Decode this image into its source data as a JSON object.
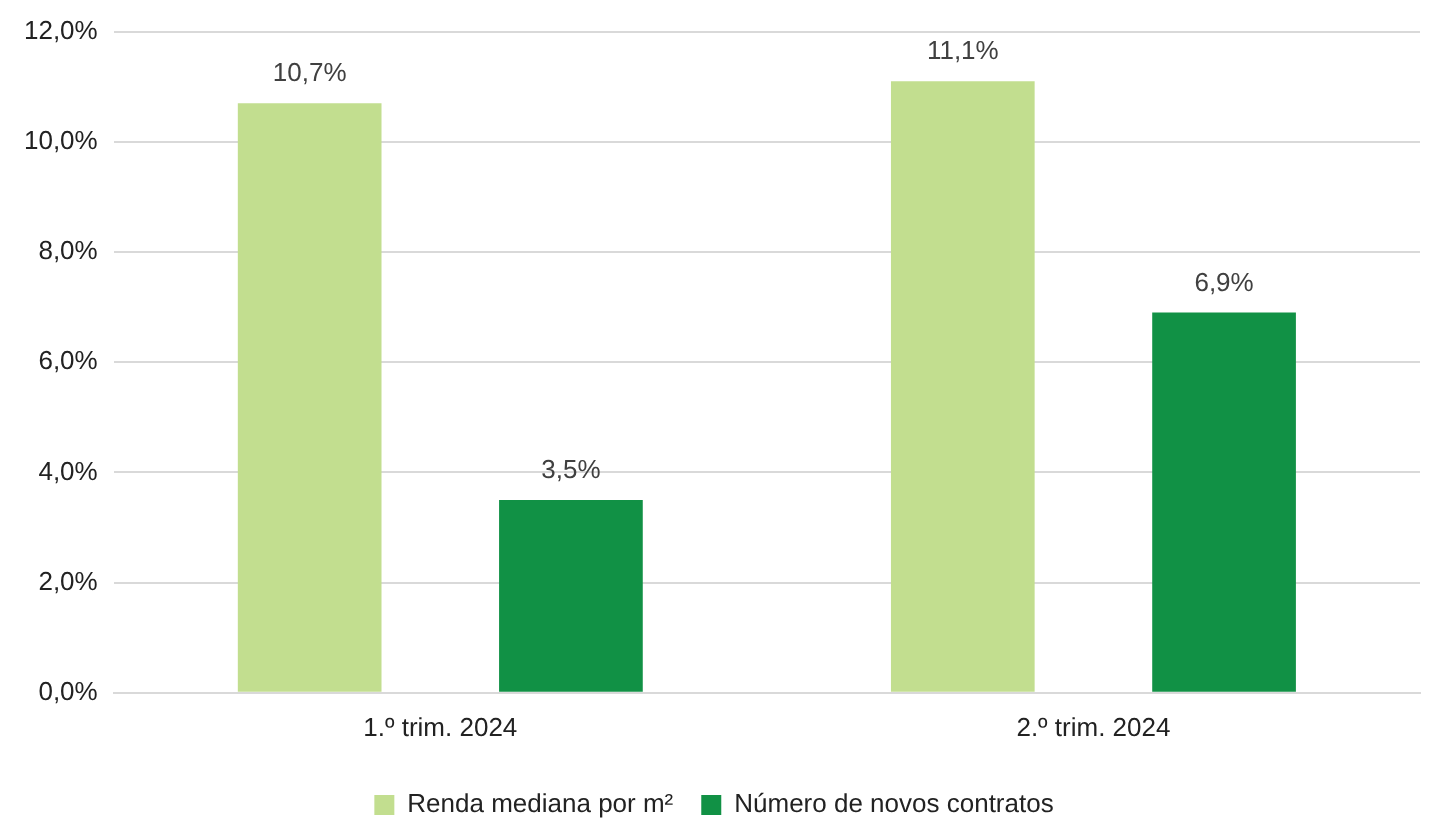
{
  "chart_data": {
    "type": "bar",
    "categories": [
      "1.º trim. 2024",
      "2.º trim. 2024"
    ],
    "series": [
      {
        "name": "Renda mediana por m²",
        "color": "#c2de8f",
        "values": [
          10.7,
          11.1
        ],
        "value_labels": [
          "10,7%",
          "11,1%"
        ]
      },
      {
        "name": "Número de novos contratos",
        "color": "#119145",
        "values": [
          3.5,
          6.9
        ],
        "value_labels": [
          "3,5%",
          "6,9%"
        ]
      }
    ],
    "ylim": [
      0,
      12
    ],
    "yticks": [
      {
        "value": 0,
        "label": "0,0%"
      },
      {
        "value": 2,
        "label": "2,0%"
      },
      {
        "value": 4,
        "label": "4,0%"
      },
      {
        "value": 6,
        "label": "6,0%"
      },
      {
        "value": 8,
        "label": "8,0%"
      },
      {
        "value": 10,
        "label": "10,0%"
      },
      {
        "value": 12,
        "label": "12,0%"
      }
    ],
    "grid": "y",
    "legend": "bottom"
  }
}
